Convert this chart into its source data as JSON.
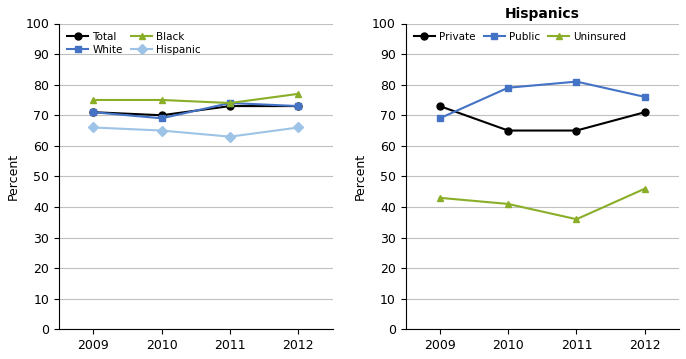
{
  "years": [
    2009,
    2010,
    2011,
    2012
  ],
  "left": {
    "Total": [
      71,
      70,
      73,
      73
    ],
    "White": [
      71,
      69,
      74,
      73
    ],
    "Black": [
      75,
      75,
      74,
      77
    ],
    "Hispanic": [
      66,
      65,
      63,
      66
    ]
  },
  "left_colors": {
    "Total": "#000000",
    "White": "#4472C4",
    "Black": "#8AAE27",
    "Hispanic": "#9DC3E6"
  },
  "left_markers": {
    "Total": "o",
    "White": "s",
    "Black": "^",
    "Hispanic": "D"
  },
  "right_title": "Hispanics",
  "right": {
    "Private": [
      73,
      65,
      65,
      71
    ],
    "Public": [
      69,
      79,
      81,
      76
    ],
    "Uninsured": [
      43,
      41,
      36,
      46
    ]
  },
  "right_colors": {
    "Private": "#000000",
    "Public": "#4472C4",
    "Uninsured": "#8AAE27"
  },
  "right_markers": {
    "Private": "o",
    "Public": "s",
    "Uninsured": "^"
  },
  "ylabel": "Percent",
  "ylim": [
    0,
    100
  ],
  "yticks": [
    0,
    10,
    20,
    30,
    40,
    50,
    60,
    70,
    80,
    90,
    100
  ],
  "background_color": "#ffffff",
  "grid_color": "#c0c0c0"
}
